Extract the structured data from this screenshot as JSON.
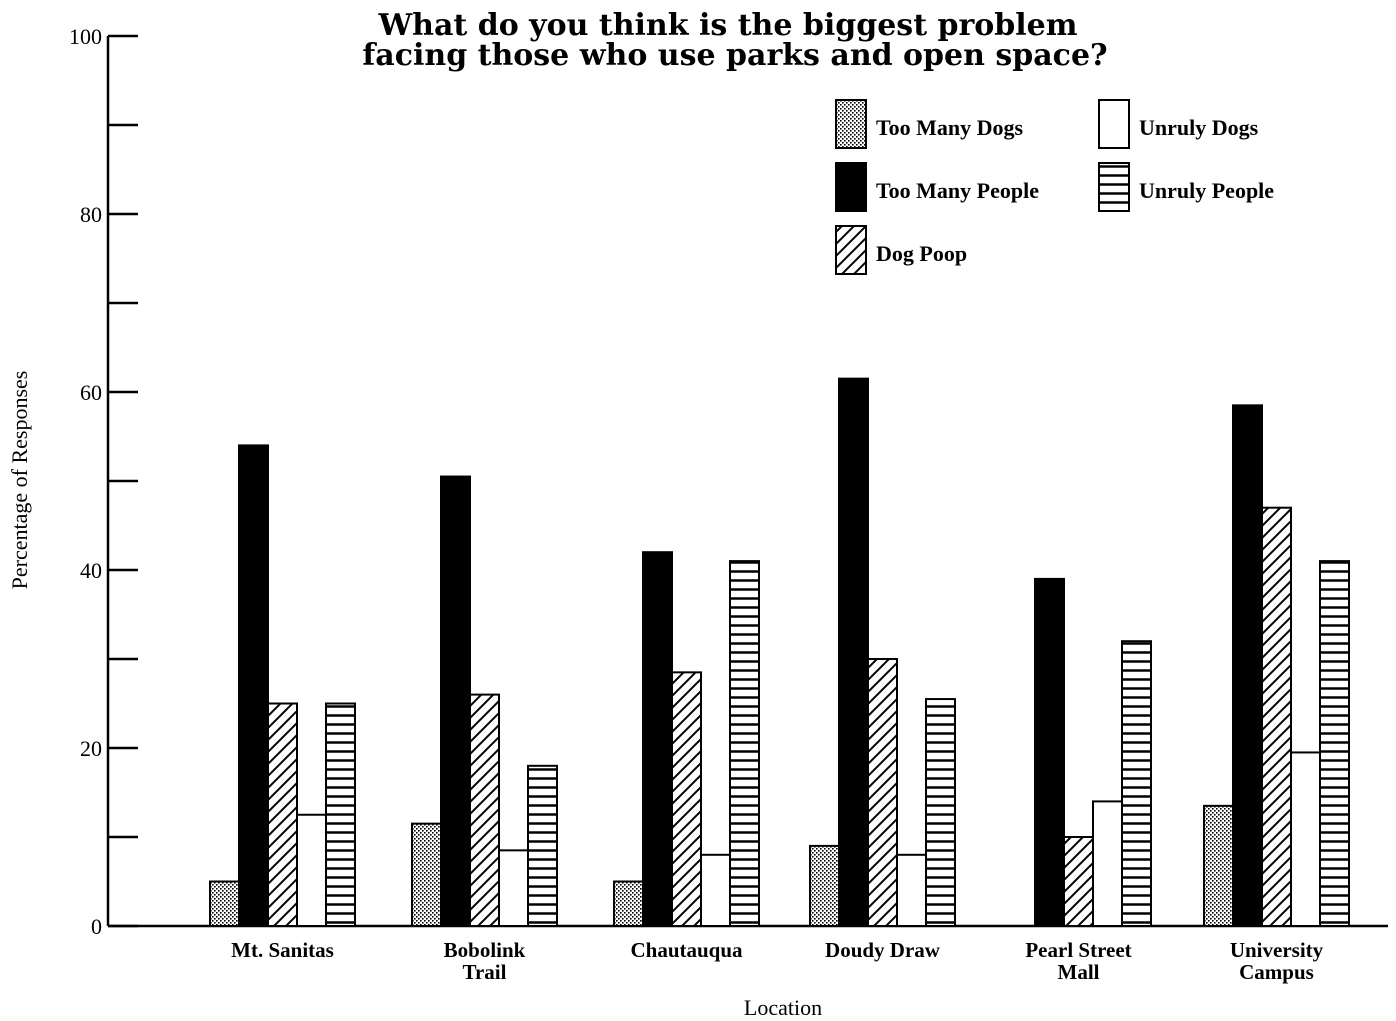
{
  "chart_data": {
    "type": "bar",
    "title_lines": [
      "What do you think is the biggest problem",
      "facing those who use parks and open space?"
    ],
    "xlabel": "Location",
    "ylabel": "Percentage of Responses",
    "ylim": [
      0,
      100
    ],
    "yticks": [
      0,
      20,
      40,
      60,
      80,
      100
    ],
    "categories": [
      [
        "Mt. Sanitas"
      ],
      [
        "Bobolink",
        "Trail"
      ],
      [
        "Chautauqua"
      ],
      [
        "Doudy Draw"
      ],
      [
        "Pearl Street",
        "Mall"
      ],
      [
        "University",
        "Campus"
      ]
    ],
    "series": [
      {
        "name": "Too Many Dogs",
        "pattern": "dots",
        "values": [
          5,
          11.5,
          5,
          9,
          0,
          13.5
        ]
      },
      {
        "name": "Too Many People",
        "pattern": "solid",
        "values": [
          54,
          50.5,
          42,
          61.5,
          39,
          58.5
        ]
      },
      {
        "name": "Dog Poop",
        "pattern": "diagonal",
        "values": [
          25,
          26,
          28.5,
          30,
          10,
          47
        ]
      },
      {
        "name": "Unruly Dogs",
        "pattern": "empty",
        "values": [
          12.5,
          8.5,
          8,
          8,
          14,
          19.5
        ]
      },
      {
        "name": "Unruly People",
        "pattern": "horizontal",
        "values": [
          25,
          18,
          41,
          25.5,
          32,
          41
        ]
      }
    ],
    "legend_position": "top-right",
    "grid": false
  }
}
